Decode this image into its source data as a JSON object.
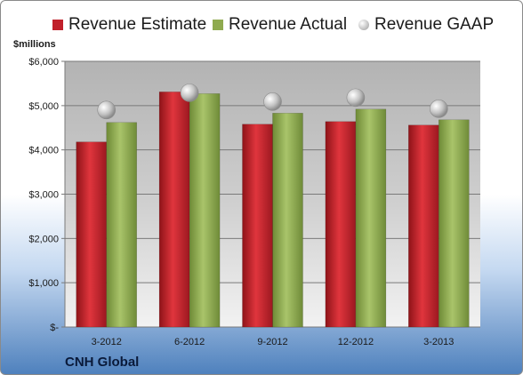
{
  "chart_data": {
    "type": "bar",
    "categories": [
      "3-2012",
      "6-2012",
      "9-2012",
      "12-2012",
      "3-2013"
    ],
    "series": [
      {
        "name": "Revenue Estimate",
        "values": [
          4180,
          5310,
          4580,
          4640,
          4560
        ],
        "color": "#c0202a",
        "mark": "bar"
      },
      {
        "name": "Revenue Actual",
        "values": [
          4620,
          5270,
          4830,
          4920,
          4680
        ],
        "color": "#8faa4f",
        "mark": "bar"
      },
      {
        "name": "Revenue GAAP",
        "values": [
          4900,
          5290,
          5090,
          5180,
          4930
        ],
        "color": "#b8b8b8",
        "mark": "marker"
      }
    ],
    "ylabel": "$millions",
    "ylim": [
      0,
      6000
    ],
    "yticks": [
      0,
      1000,
      2000,
      3000,
      4000,
      5000,
      6000
    ],
    "ytick_labels": [
      "$-",
      "$1,000",
      "$2,000",
      "$3,000",
      "$4,000",
      "$5,000",
      "$6,000"
    ],
    "grid": true,
    "legend_position": "top"
  },
  "footer_title": "CNH Global"
}
